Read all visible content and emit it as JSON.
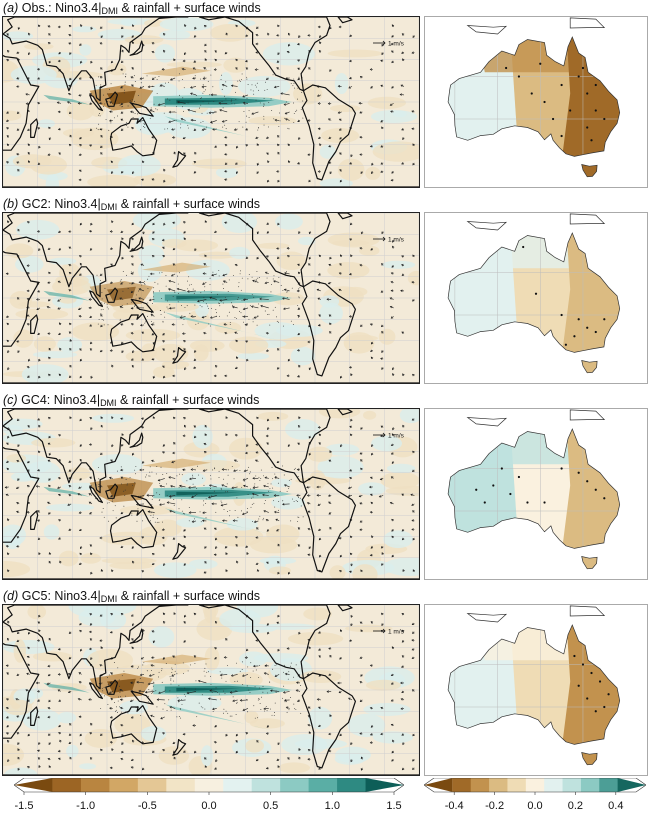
{
  "panels": [
    {
      "label": "(a)",
      "model": "Obs.",
      "index": "Nino3.4",
      "subscript": "DMI",
      "suffix": "& rainfall + surface winds"
    },
    {
      "label": "(b)",
      "model": "GC2",
      "index": "Nino3.4",
      "subscript": "DMI",
      "suffix": "& rainfall + surface winds"
    },
    {
      "label": "(c)",
      "model": "GC4",
      "index": "Nino3.4",
      "subscript": "DMI",
      "suffix": "& rainfall + surface winds"
    },
    {
      "label": "(d)",
      "model": "GC5",
      "index": "Nino3.4",
      "subscript": "DMI",
      "suffix": "& rainfall + surface winds"
    }
  ],
  "vector_reference": "1 m/s",
  "colorbars": {
    "global": {
      "ticks": [
        "-1.5",
        "-1.0",
        "-0.5",
        "0.0",
        "0.5",
        "1.0",
        "1.5"
      ],
      "min": -1.5,
      "max": 1.5,
      "colors": [
        "#7a4a10",
        "#9c6524",
        "#b98540",
        "#d2a765",
        "#e4c795",
        "#f2e4c6",
        "#f7f0e0",
        "#e3f2f0",
        "#bfe2de",
        "#8ccac3",
        "#5aaea5",
        "#2e8a82",
        "#0d5e58"
      ]
    },
    "australia": {
      "ticks": [
        "-0.4",
        "-0.2",
        "0.0",
        "0.2",
        "0.4"
      ],
      "min": -0.5,
      "max": 0.5,
      "colors": [
        "#7a4a10",
        "#a06a28",
        "#c2924e",
        "#dbbb82",
        "#efdcb5",
        "#faf1df",
        "#e2f1ef",
        "#bfe2de",
        "#8ccac3",
        "#4c9e96",
        "#15675f"
      ]
    }
  }
}
